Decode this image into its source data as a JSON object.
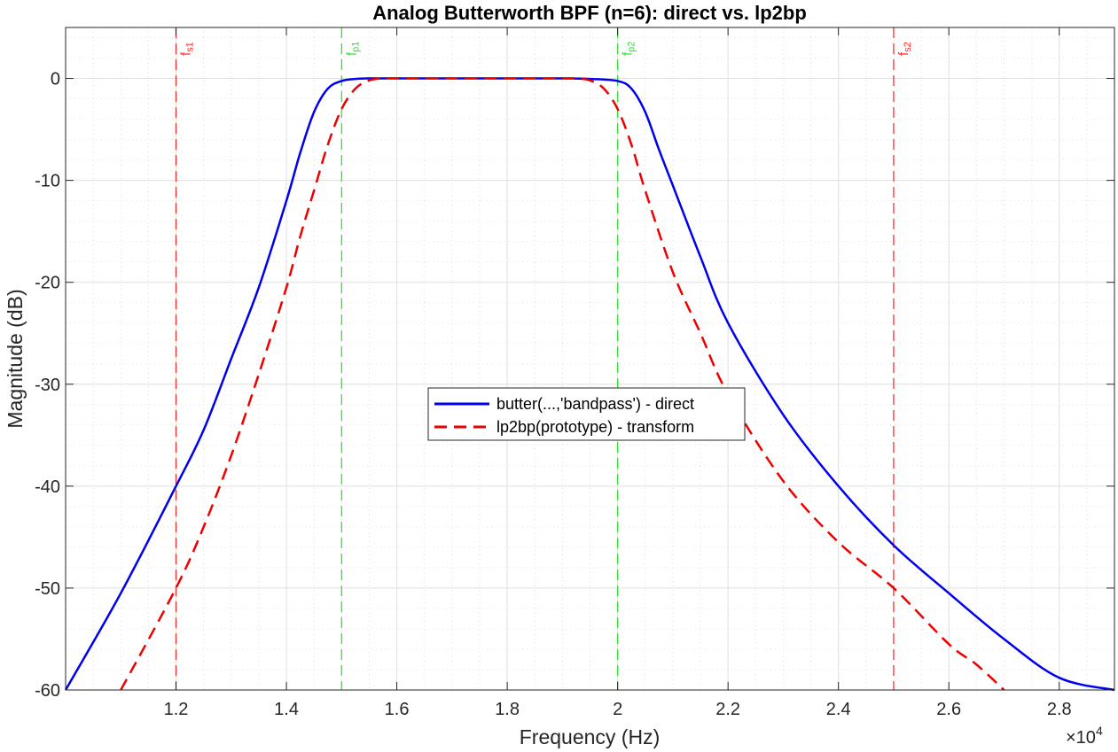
{
  "chart_data": {
    "type": "line",
    "title": "Analog Butterworth BPF (n=6): direct vs. lp2bp",
    "xlabel": "Frequency (Hz)",
    "ylabel": "Magnitude (dB)",
    "x_exponent_label": "×10",
    "x_exponent_power": "4",
    "xlim": [
      10000,
      29000
    ],
    "ylim": [
      -60,
      5
    ],
    "x_ticks": [
      12000,
      14000,
      16000,
      18000,
      20000,
      22000,
      24000,
      26000,
      28000
    ],
    "x_tick_labels": [
      "1.2",
      "1.4",
      "1.6",
      "1.8",
      "2",
      "2.2",
      "2.4",
      "2.6",
      "2.8"
    ],
    "y_ticks": [
      0,
      -10,
      -20,
      -30,
      -40,
      -50,
      -60
    ],
    "y_tick_labels": [
      "0",
      "-10",
      "-20",
      "-30",
      "-40",
      "-50",
      "-60"
    ],
    "grid": true,
    "minor_grid": true,
    "legend_position": "center",
    "series": [
      {
        "name": "butter(...,'bandpass') - direct",
        "color": "#0000ee",
        "style": "solid",
        "x": [
          10000,
          11000,
          12000,
          12500,
          13000,
          13500,
          14000,
          14250,
          14500,
          14750,
          15000,
          15250,
          15500,
          16000,
          17000,
          18000,
          19000,
          19500,
          20000,
          20250,
          20500,
          20750,
          21000,
          21500,
          22000,
          23000,
          24000,
          25000,
          26000,
          27000,
          28000,
          29000
        ],
        "values": [
          -60,
          -50.5,
          -40,
          -34.5,
          -27.5,
          -20.5,
          -12,
          -7.3,
          -3.3,
          -1,
          -0.25,
          -0.05,
          0,
          0,
          0,
          0,
          0,
          -0.05,
          -0.25,
          -1,
          -3.3,
          -7,
          -10.5,
          -17.5,
          -24,
          -33,
          -40,
          -45.8,
          -50.5,
          -55,
          -58.8,
          -60
        ]
      },
      {
        "name": "lp2bp(prototype) - transform",
        "color": "#ee0000",
        "style": "dashed",
        "x": [
          11000,
          12000,
          12500,
          13000,
          13500,
          14000,
          14250,
          14500,
          14750,
          15000,
          15250,
          15500,
          15750,
          16000,
          17000,
          18000,
          19000,
          19250,
          19500,
          19750,
          20000,
          20250,
          20500,
          21000,
          21500,
          22000,
          23000,
          24000,
          25000,
          26000,
          26500,
          27000
        ],
        "values": [
          -60,
          -50,
          -44,
          -37,
          -29,
          -20.5,
          -15.5,
          -11,
          -6.5,
          -3,
          -1,
          -0.2,
          0,
          0,
          0,
          0,
          0,
          0,
          -0.2,
          -1,
          -3,
          -6.5,
          -11,
          -19,
          -25,
          -31,
          -39.5,
          -45.5,
          -50,
          -55.5,
          -57.5,
          -60
        ]
      }
    ],
    "annotations": [
      {
        "label": "f",
        "sub": "s1",
        "x": 12000,
        "color": "#ff2a2a"
      },
      {
        "label": "f",
        "sub": "p1",
        "x": 15000,
        "color": "#33e233"
      },
      {
        "label": "f",
        "sub": "p2",
        "x": 20000,
        "color": "#33e233"
      },
      {
        "label": "f",
        "sub": "s2",
        "x": 25000,
        "color": "#ff2a2a"
      }
    ]
  }
}
